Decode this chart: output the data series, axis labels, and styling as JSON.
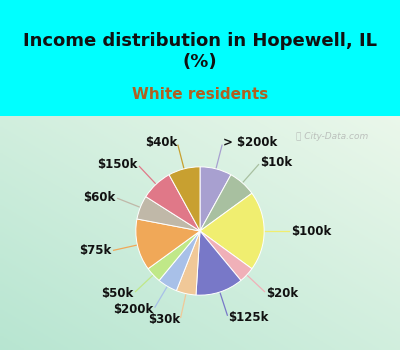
{
  "title": "Income distribution in Hopewell, IL\n(%)",
  "subtitle": "White residents",
  "bg_color": "#00FFFF",
  "chart_bg_color": "#d8efe0",
  "slices": [
    {
      "label": "> $200k",
      "value": 8,
      "color": "#a8a0d0"
    },
    {
      "label": "$10k",
      "value": 7,
      "color": "#a8c0a0"
    },
    {
      "label": "$100k",
      "value": 20,
      "color": "#f0ee70"
    },
    {
      "label": "$20k",
      "value": 4,
      "color": "#f0b0b8"
    },
    {
      "label": "$125k",
      "value": 12,
      "color": "#7878c8"
    },
    {
      "label": "$30k",
      "value": 5,
      "color": "#f0c898"
    },
    {
      "label": "$200k",
      "value": 5,
      "color": "#a8c0e8"
    },
    {
      "label": "$50k",
      "value": 4,
      "color": "#c0e888"
    },
    {
      "label": "$75k",
      "value": 13,
      "color": "#f0a858"
    },
    {
      "label": "$60k",
      "value": 6,
      "color": "#c0b8a8"
    },
    {
      "label": "$150k",
      "value": 8,
      "color": "#e07888"
    },
    {
      "label": "$40k",
      "value": 8,
      "color": "#c8a030"
    }
  ],
  "watermark": " City-Data.com",
  "title_fontsize": 13,
  "subtitle_fontsize": 11,
  "label_fontsize": 8.5,
  "title_color": "#111111",
  "subtitle_color": "#b06020"
}
